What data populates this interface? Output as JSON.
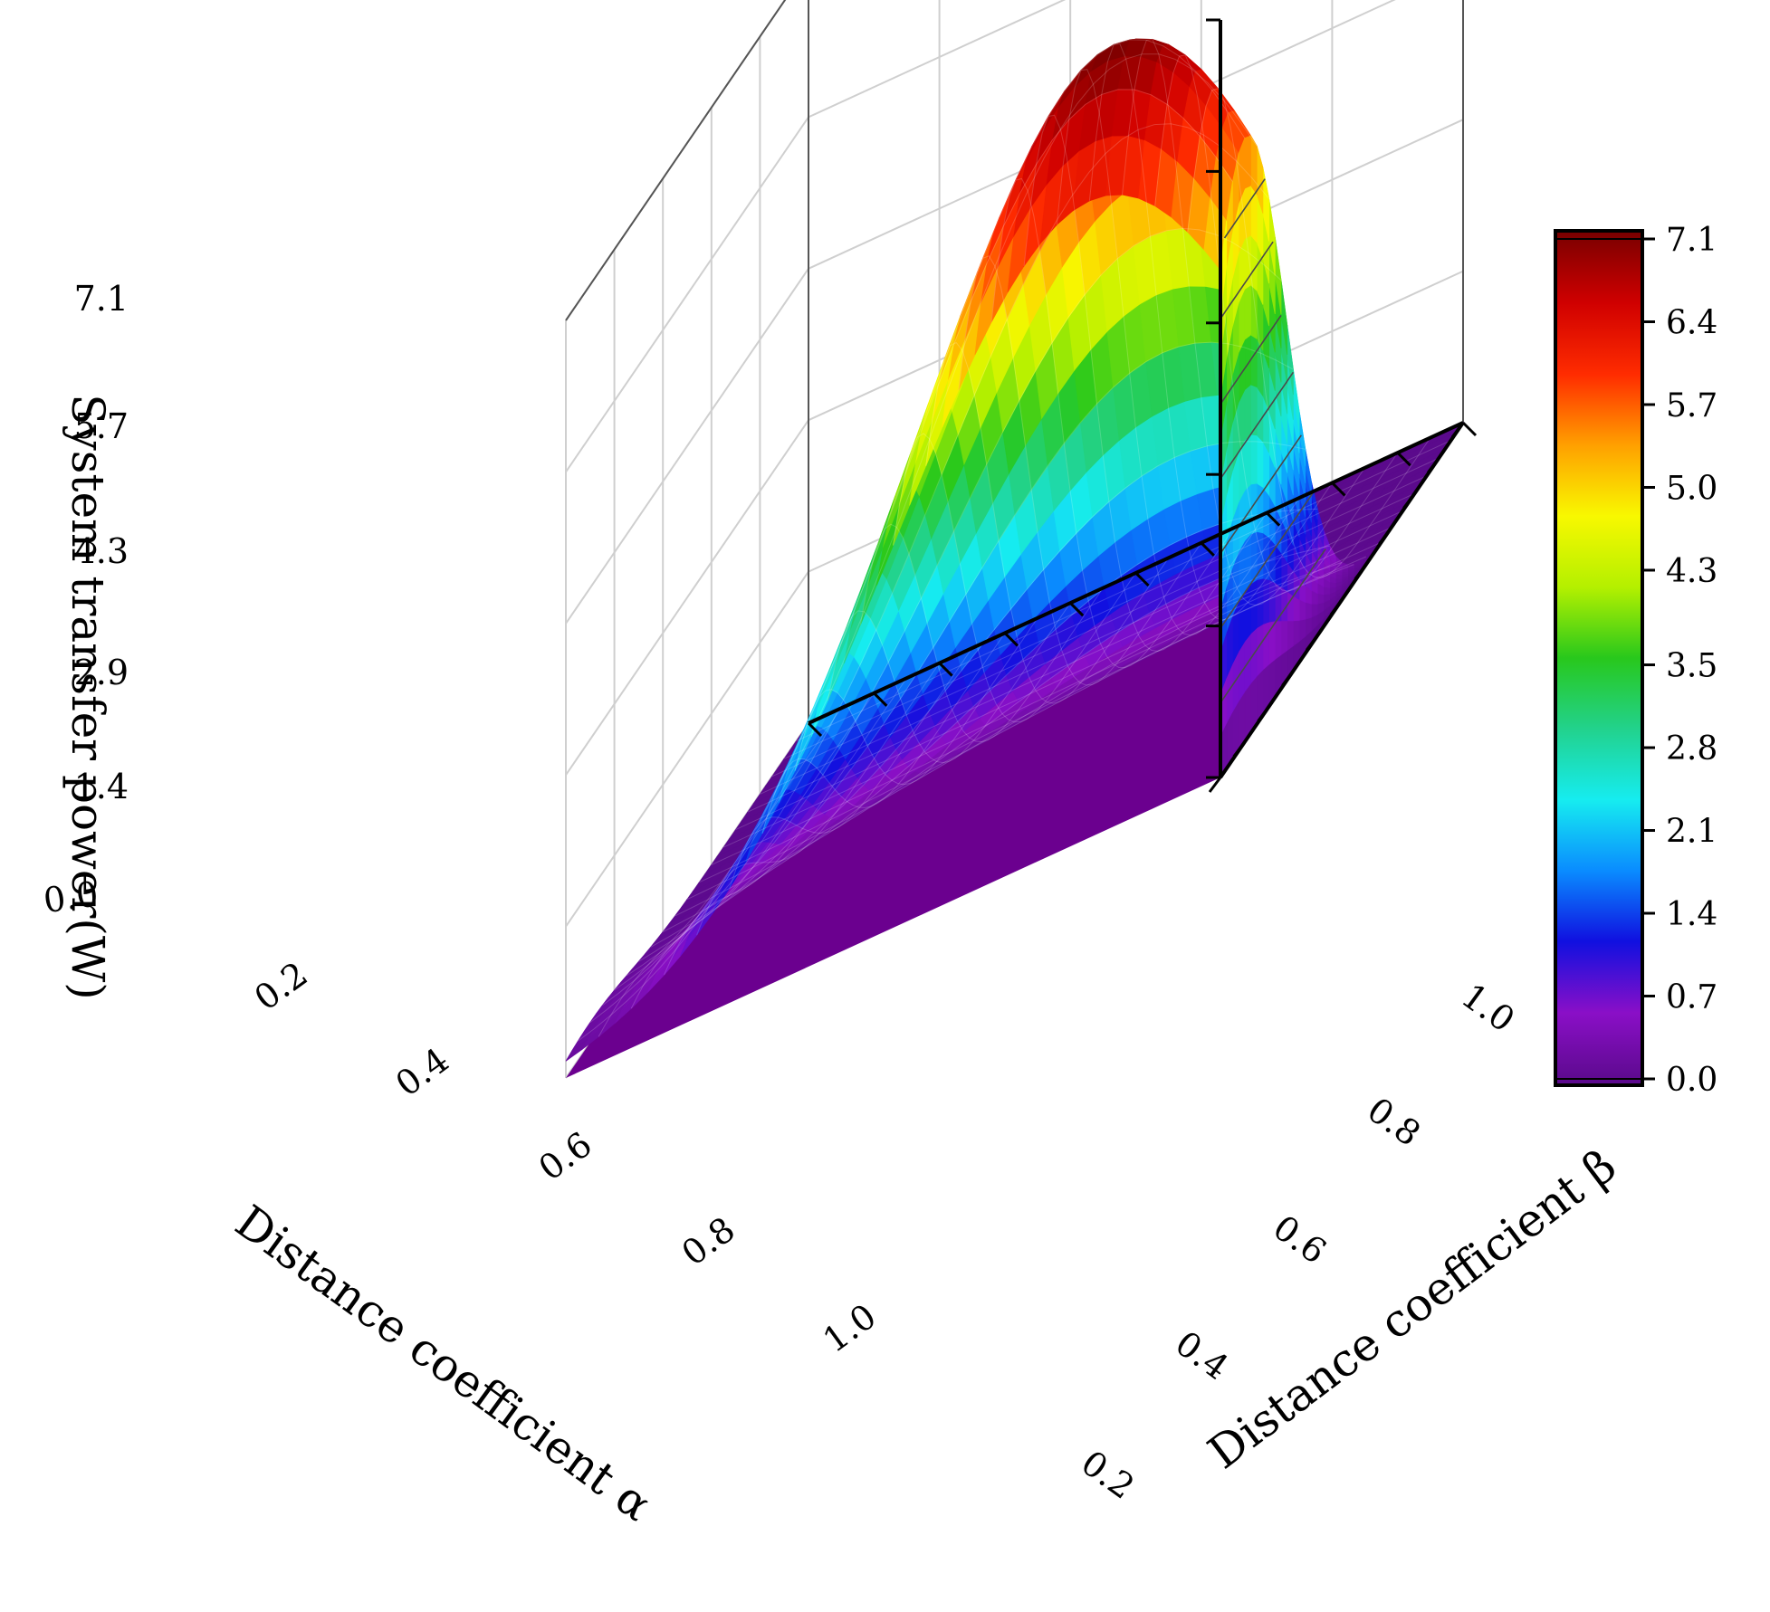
{
  "chart_data": {
    "type": "surface3d",
    "xlabel": "Distance coefficient  α",
    "ylabel": "Distance coefficient β",
    "zlabel": "System transfer power(W)",
    "x_ticks": [
      "0.2",
      "0.4",
      "0.6",
      "0.8",
      "1.0"
    ],
    "y_ticks": [
      "0.2",
      "0.4",
      "0.6",
      "0.8",
      "1.0"
    ],
    "z_ticks": [
      "0.0",
      "1.4",
      "2.9",
      "4.3",
      "5.7",
      "7.1"
    ],
    "xlim": [
      0,
      1
    ],
    "ylim": [
      0,
      1
    ],
    "zlim": [
      0,
      7.1
    ],
    "colorbar_ticks": [
      "0.0",
      "0.7",
      "1.4",
      "2.1",
      "2.8",
      "3.5",
      "4.3",
      "5.0",
      "5.7",
      "6.4",
      "7.1"
    ],
    "colorbar_range": [
      0,
      7.1
    ],
    "colormap": [
      "#5b0a8c",
      "#8a0fc7",
      "#1010e0",
      "#0a8cff",
      "#16ecf0",
      "#22d28c",
      "#28c81c",
      "#b4f000",
      "#f8f800",
      "#ffa000",
      "#ff2c00",
      "#d00000",
      "#7a0000"
    ],
    "grid": true,
    "peak": {
      "alpha": 0.1,
      "beta": 0.8,
      "value": 7.1
    },
    "surface_samples": {
      "alpha": [
        0.0,
        0.1,
        0.2,
        0.3,
        0.4,
        0.5,
        0.6,
        0.7,
        0.8,
        0.9,
        1.0
      ],
      "beta_at_alpha_0_1": [
        {
          "beta": 0.0,
          "power": 0.7
        },
        {
          "beta": 0.2,
          "power": 2.0
        },
        {
          "beta": 0.4,
          "power": 3.8
        },
        {
          "beta": 0.6,
          "power": 5.6
        },
        {
          "beta": 0.8,
          "power": 7.1
        },
        {
          "beta": 1.0,
          "power": 6.2
        }
      ]
    }
  }
}
